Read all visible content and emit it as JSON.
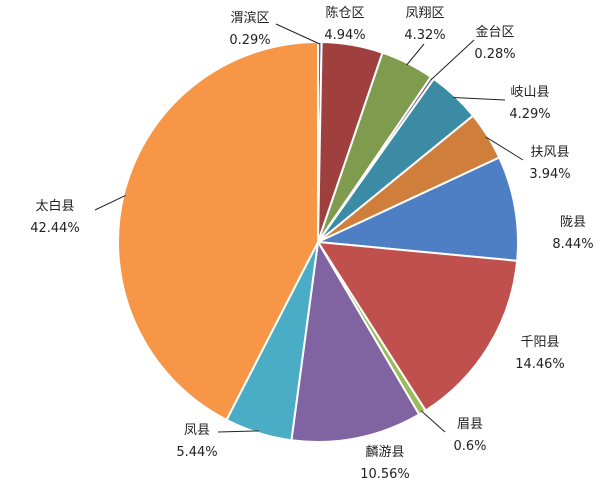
{
  "chart_data": {
    "type": "pie",
    "categories": [
      "渭滨区",
      "陈仓区",
      "凤翔区",
      "金台区",
      "岐山县",
      "扶风县",
      "陇县",
      "千阳县",
      "眉县",
      "麟游县",
      "凤县",
      "太白县"
    ],
    "values": [
      0.29,
      4.94,
      4.32,
      0.28,
      4.29,
      3.94,
      8.44,
      14.46,
      0.6,
      10.56,
      5.44,
      42.44
    ],
    "value_labels": [
      "0.29%",
      "4.94%",
      "4.32%",
      "0.28%",
      "4.29%",
      "3.94%",
      "8.44%",
      "14.46%",
      "0.6%",
      "10.56%",
      "5.44%",
      "42.44%"
    ],
    "colors": [
      "#4A6FA5",
      "#A0403E",
      "#7F9B4D",
      "#6B5A8A",
      "#3A8BA3",
      "#D07E3C",
      "#4E7FC4",
      "#C0504D",
      "#9BBB59",
      "#8064A2",
      "#4BACC6",
      "#F79646"
    ],
    "title": "",
    "legend": "none",
    "start_angle": 0,
    "direction": "clockwise"
  }
}
